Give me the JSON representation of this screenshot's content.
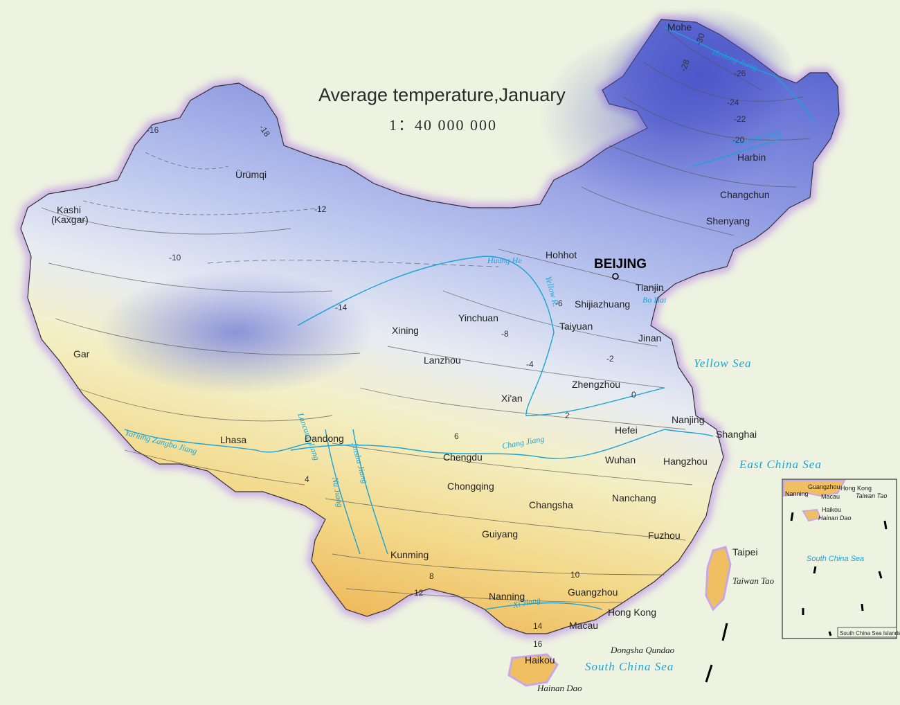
{
  "title": "Average temperature,January",
  "scale": "1：40 000 000",
  "capital": "BEIJING",
  "cities": [
    "Mohe",
    "Harbin",
    "Changchun",
    "Shenyang",
    "Hohhot",
    "Tianjin",
    "Shijiazhuang",
    "Taiyuan",
    "Jinan",
    "Ürümqi",
    "Kashi",
    "(Kaxgar)",
    "Gar",
    "Lhasa",
    "Dandong",
    "Xining",
    "Yinchuan",
    "Lanzhou",
    "Xi'an",
    "Zhengzhou",
    "Nanjing",
    "Shanghai",
    "Hefei",
    "Wuhan",
    "Hangzhou",
    "Chengdu",
    "Chongqing",
    "Changsha",
    "Nanchang",
    "Guiyang",
    "Kunming",
    "Fuzhou",
    "Taipei",
    "Nanning",
    "Guangzhou",
    "Hong Kong",
    "Macau",
    "Haikou"
  ],
  "seas": [
    "Yellow Sea",
    "East China Sea",
    "South China Sea",
    "Bo Hai"
  ],
  "islands": [
    "Taiwan Tao",
    "Hainan Dao",
    "Dongsha Qundao"
  ],
  "rivers": [
    "Heilong Jiang",
    "Songhua Jiang",
    "Huang He",
    "Yellow R.",
    "Chang Jiang",
    "Yarlung Zangbo Jiang",
    "Xi Jiang",
    "Nu Jiang",
    "Lancang Jiang",
    "Jinsha Jiang"
  ],
  "isotherm_labels": [
    "-30",
    "-28",
    "-26",
    "-24",
    "-22",
    "-20",
    "-18",
    "-16",
    "-14",
    "-12",
    "-10",
    "-8",
    "-6",
    "-4",
    "-2",
    "0",
    "2",
    "4",
    "6",
    "8",
    "10",
    "12",
    "14",
    "16"
  ],
  "inset": {
    "title": "South China Sea Islands",
    "cities": [
      "Guangzhou",
      "Hong Kong",
      "Nanning",
      "Macau",
      "Haikou"
    ],
    "labels": [
      "Taiwan Tao",
      "Hainan Dao",
      "South China Sea"
    ]
  },
  "colors": {
    "background": "#eef2e0",
    "cold": "#6c78d8",
    "cool": "#b9c4ee",
    "mild": "#f1f1cf",
    "warm": "#f0c46a",
    "water": "#1aa3d6",
    "border_glow": "#c7a8e6"
  }
}
